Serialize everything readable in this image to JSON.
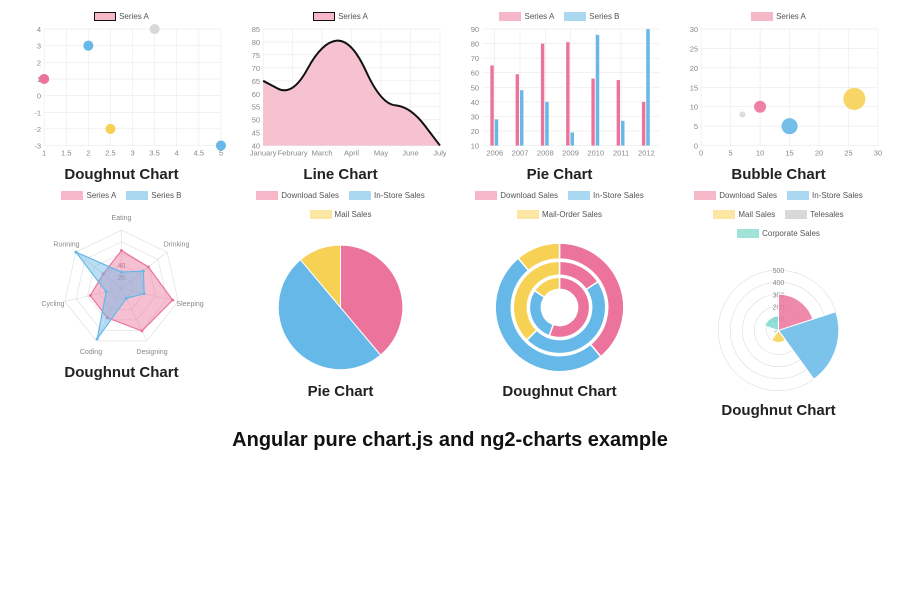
{
  "footer_text": "Angular pure chart.js and ng2-charts example",
  "colors": {
    "pink": "#ec749c",
    "pink_fill": "#f6b7c8",
    "blue": "#65b8e8",
    "yellow": "#f6d154",
    "grey": "#d8d8d8",
    "teal": "#7fd9d0",
    "axis": "#888888",
    "grid": "#e5e5e5",
    "black": "#111111"
  },
  "charts": [
    {
      "id": "c1",
      "title": "Doughnut Chart",
      "type": "scatter",
      "legend": [
        {
          "label": "Series A",
          "color": "#f6b7c8",
          "border": "#111"
        }
      ],
      "xlim": [
        1,
        5
      ],
      "ylim": [
        -3,
        4
      ],
      "xticks": [
        1.0,
        1.5,
        2.0,
        2.5,
        3.0,
        3.5,
        4.0,
        4.5,
        5.0
      ],
      "yticks": [
        -3,
        -2,
        -1,
        0,
        1,
        2,
        3,
        4
      ],
      "points": [
        {
          "x": 1.0,
          "y": 1,
          "r": 5,
          "c": "#ec749c"
        },
        {
          "x": 2.0,
          "y": 3,
          "r": 5,
          "c": "#65b8e8"
        },
        {
          "x": 2.5,
          "y": -2,
          "r": 5,
          "c": "#f6d154"
        },
        {
          "x": 3.5,
          "y": 4,
          "r": 5,
          "c": "#d8d8d8"
        },
        {
          "x": 5.0,
          "y": -3,
          "r": 5,
          "c": "#65b8e8"
        }
      ]
    },
    {
      "id": "c2",
      "title": "Line Chart",
      "type": "area",
      "legend": [
        {
          "label": "Series A",
          "color": "#f6b7c8",
          "border": "#111"
        }
      ],
      "xlabels": [
        "January",
        "February",
        "March",
        "April",
        "May",
        "June",
        "July"
      ],
      "ylim": [
        40,
        85
      ],
      "yticks": [
        40,
        45,
        50,
        55,
        60,
        65,
        70,
        75,
        80,
        85
      ],
      "values": [
        65,
        59,
        80,
        81,
        56,
        55,
        40
      ],
      "line_color": "#111",
      "fill_color": "#f6b7c8",
      "line_width": 2
    },
    {
      "id": "c3",
      "title": "Pie Chart",
      "type": "bar",
      "legend": [
        {
          "label": "Series A",
          "color": "#f6b7c8"
        },
        {
          "label": "Series B",
          "color": "#a9d8f0"
        }
      ],
      "xlabels": [
        "2006",
        "2007",
        "2008",
        "2009",
        "2010",
        "2011",
        "2012"
      ],
      "ylim": [
        10,
        90
      ],
      "yticks": [
        10,
        20,
        30,
        40,
        50,
        60,
        70,
        80,
        90
      ],
      "series": [
        {
          "color": "#ec749c",
          "values": [
            65,
            59,
            80,
            81,
            56,
            55,
            40
          ]
        },
        {
          "color": "#65b8e8",
          "values": [
            28,
            48,
            40,
            19,
            86,
            27,
            90
          ]
        }
      ],
      "bar_width": 0.35
    },
    {
      "id": "c4",
      "title": "Bubble Chart",
      "type": "bubble",
      "legend": [
        {
          "label": "Series A",
          "color": "#f6b7c8"
        }
      ],
      "xlim": [
        0,
        30
      ],
      "ylim": [
        0,
        30
      ],
      "xticks": [
        0,
        5,
        10,
        15,
        20,
        25,
        30
      ],
      "yticks": [
        0,
        5,
        10,
        15,
        20,
        25,
        30
      ],
      "points": [
        {
          "x": 7,
          "y": 8,
          "r": 3,
          "c": "#d8d8d8"
        },
        {
          "x": 10,
          "y": 10,
          "r": 6,
          "c": "#ec749c"
        },
        {
          "x": 15,
          "y": 5,
          "r": 8,
          "c": "#65b8e8"
        },
        {
          "x": 26,
          "y": 12,
          "r": 11,
          "c": "#f6d154"
        }
      ]
    },
    {
      "id": "c5",
      "title": "Doughnut Chart",
      "type": "radar",
      "legend": [
        {
          "label": "Series A",
          "color": "#f6b7c8"
        },
        {
          "label": "Series B",
          "color": "#a9d8f0"
        }
      ],
      "axes": [
        "Eating",
        "Drinking",
        "Sleeping",
        "Designing",
        "Coding",
        "Cycling",
        "Running"
      ],
      "rmax": 100,
      "rings": [
        20,
        40,
        60,
        80,
        100
      ],
      "series": [
        {
          "color": "#ec749c",
          "fill": "#ec749c",
          "opacity": 0.45,
          "values": [
            65,
            59,
            90,
            81,
            56,
            55,
            40
          ]
        },
        {
          "color": "#65b8e8",
          "fill": "#65b8e8",
          "opacity": 0.45,
          "values": [
            28,
            48,
            40,
            19,
            96,
            27,
            100
          ]
        }
      ]
    },
    {
      "id": "c6",
      "title": "Pie Chart",
      "type": "pie",
      "legend": [
        {
          "label": "Download Sales",
          "color": "#f6b7c8"
        },
        {
          "label": "In-Store Sales",
          "color": "#a9d8f0"
        },
        {
          "label": "Mail Sales",
          "color": "#fbe6a3"
        }
      ],
      "slices": [
        {
          "label": "Download Sales",
          "value": 350,
          "color": "#ec749c"
        },
        {
          "label": "In-Store Sales",
          "value": 450,
          "color": "#65b8e8"
        },
        {
          "label": "Mail Sales",
          "value": 100,
          "color": "#f6d154"
        }
      ]
    },
    {
      "id": "c7",
      "title": "Doughnut Chart",
      "type": "doughnut",
      "legend": [
        {
          "label": "Download Sales",
          "color": "#f6b7c8"
        },
        {
          "label": "In-Store Sales",
          "color": "#a9d8f0"
        },
        {
          "label": "Mail-Order Sales",
          "color": "#fbe6a3"
        }
      ],
      "rings": [
        [
          {
            "value": 350,
            "color": "#ec749c"
          },
          {
            "value": 450,
            "color": "#65b8e8"
          },
          {
            "value": 100,
            "color": "#f6d154"
          }
        ],
        [
          {
            "value": 50,
            "color": "#ec749c"
          },
          {
            "value": 150,
            "color": "#65b8e8"
          },
          {
            "value": 120,
            "color": "#f6d154"
          }
        ],
        [
          {
            "value": 250,
            "color": "#ec749c"
          },
          {
            "value": 130,
            "color": "#65b8e8"
          },
          {
            "value": 70,
            "color": "#f6d154"
          }
        ]
      ]
    },
    {
      "id": "c8",
      "title": "Doughnut Chart",
      "type": "polar",
      "legend": [
        {
          "label": "Download Sales",
          "color": "#f6b7c8"
        },
        {
          "label": "In-Store Sales",
          "color": "#a9d8f0"
        },
        {
          "label": "Mail Sales",
          "color": "#fbe6a3"
        },
        {
          "label": "Telesales",
          "color": "#d8d8d8"
        },
        {
          "label": "Corporate Sales",
          "color": "#9fe2d8"
        }
      ],
      "rmax": 500,
      "rings": [
        100,
        200,
        300,
        400,
        500
      ],
      "slices": [
        {
          "label": "Download Sales",
          "value": 300,
          "color": "#ec749c"
        },
        {
          "label": "In-Store Sales",
          "value": 500,
          "color": "#65b8e8"
        },
        {
          "label": "Mail Sales",
          "value": 100,
          "color": "#f6d154"
        },
        {
          "label": "Telesales",
          "value": 40,
          "color": "#d8d8d8"
        },
        {
          "label": "Corporate Sales",
          "value": 120,
          "color": "#7fd9d0"
        }
      ]
    }
  ]
}
